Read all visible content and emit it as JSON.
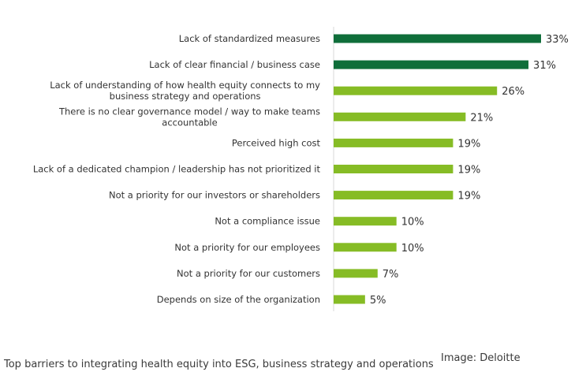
{
  "chart_data": {
    "type": "bar",
    "orientation": "horizontal",
    "categories": [
      [
        "Lack of standardized measures"
      ],
      [
        "Lack of clear financial / business case"
      ],
      [
        "Lack of understanding of how health equity connects to my",
        "business strategy and operations"
      ],
      [
        "There is no clear governance model / way to make teams",
        "accountable"
      ],
      [
        "Perceived high cost"
      ],
      [
        "Lack of a dedicated champion / leadership has not prioritized it"
      ],
      [
        "Not a priority for our investors or shareholders"
      ],
      [
        "Not a compliance issue"
      ],
      [
        "Not a priority for our employees"
      ],
      [
        "Not a priority for our customers"
      ],
      [
        "Depends on size of the organization"
      ]
    ],
    "values": [
      33,
      31,
      26,
      21,
      19,
      19,
      19,
      10,
      10,
      7,
      5
    ],
    "value_labels": [
      "33%",
      "31%",
      "26%",
      "21%",
      "19%",
      "19%",
      "19%",
      "10%",
      "10%",
      "7%",
      "5%"
    ],
    "highlight": [
      true,
      true,
      false,
      false,
      false,
      false,
      false,
      false,
      false,
      false,
      false
    ],
    "colors": {
      "highlight": "#0f6e3a",
      "default": "#86bc25",
      "axis": "#d9d9d9"
    },
    "xlim": [
      0,
      33
    ],
    "grid": false,
    "legend": "none"
  },
  "footer": {
    "caption": "Top barriers to integrating health equity into ESG, business strategy and operations",
    "credit": "Image: Deloitte"
  }
}
